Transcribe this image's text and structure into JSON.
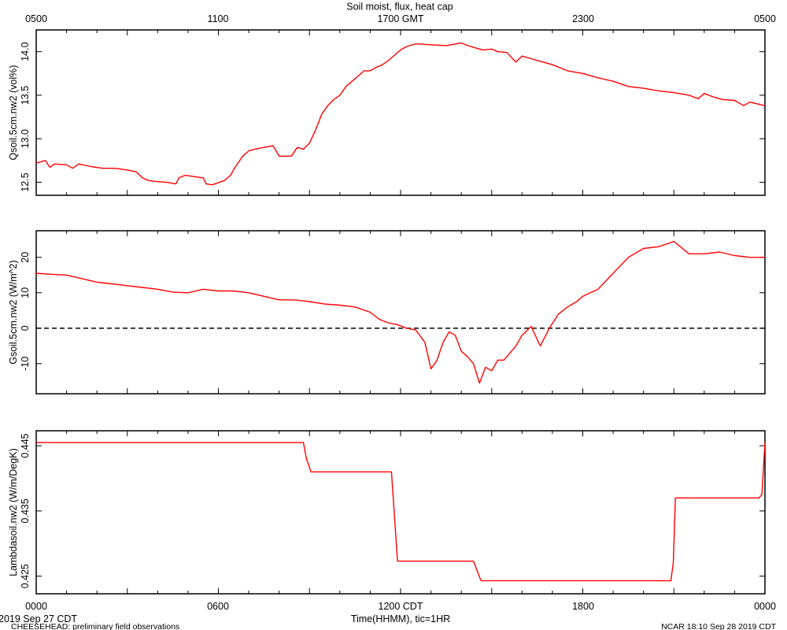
{
  "title": "Soil moist, flux, heat cap",
  "top_axis_ticks": [
    "0500",
    "1100",
    "1700 GMT",
    "2300",
    "0500"
  ],
  "bottom_axis_ticks": [
    "0000",
    "0600",
    "1200 CDT",
    "1800",
    "0000"
  ],
  "xlabel": "Time(HHMM), tic=1HR",
  "footer": {
    "date": "2019 Sep 27 CDT",
    "project": "CHEESEHEAD: preliminary field observations",
    "credit": "NCAR 18:10 Sep 28 2019 CDT"
  },
  "colors": {
    "series": "#ff0000",
    "frame": "#000000",
    "reference": "#000000"
  },
  "chart_data": [
    {
      "type": "line",
      "ylabel": "Qsoil.5cm.nw2 (vol%)",
      "xlim": [
        0,
        24
      ],
      "ylim": [
        12.35,
        14.25
      ],
      "yticks": [
        12.5,
        13.0,
        13.5,
        14.0
      ],
      "ytick_labels": [
        "12.5",
        "13.0",
        "13.5",
        "14.0"
      ],
      "series": [
        {
          "x": [
            0,
            0.3,
            0.45,
            0.6,
            1,
            1.2,
            1.4,
            1.8,
            2.2,
            2.6,
            3,
            3.3,
            3.5,
            3.7,
            3.9,
            4.3,
            4.6,
            4.7,
            4.9,
            5.1,
            5.5,
            5.6,
            5.8,
            6.2,
            6.4,
            6.55,
            6.8,
            7.0,
            7.2,
            7.5,
            7.8,
            8.0,
            8.4,
            8.6,
            8.8,
            9.0,
            9.2,
            9.4,
            9.6,
            9.8,
            10.0,
            10.2,
            10.4,
            10.6,
            10.8,
            11.0,
            11.2,
            11.4,
            11.6,
            11.8,
            12.0,
            12.2,
            12.5,
            13.0,
            13.5,
            14.0,
            14.3,
            14.5,
            14.7,
            15.0,
            15.2,
            15.5,
            15.8,
            16.0,
            16.3,
            16.6,
            17.0,
            17.5,
            18.0,
            18.5,
            19.0,
            19.5,
            20.0,
            20.5,
            21.0,
            21.5,
            21.8,
            22.0,
            22.3,
            22.6,
            23.0,
            23.3,
            23.5,
            24.0
          ],
          "y": [
            12.72,
            12.75,
            12.67,
            12.71,
            12.7,
            12.66,
            12.71,
            12.68,
            12.66,
            12.66,
            12.64,
            12.62,
            12.55,
            12.52,
            12.51,
            12.5,
            12.48,
            12.55,
            12.58,
            12.57,
            12.55,
            12.48,
            12.47,
            12.52,
            12.58,
            12.67,
            12.8,
            12.86,
            12.88,
            12.9,
            12.92,
            12.8,
            12.8,
            12.9,
            12.88,
            12.95,
            13.1,
            13.28,
            13.38,
            13.45,
            13.5,
            13.6,
            13.66,
            13.72,
            13.78,
            13.78,
            13.82,
            13.85,
            13.9,
            13.96,
            14.02,
            14.06,
            14.09,
            14.08,
            14.07,
            14.1,
            14.06,
            14.04,
            14.02,
            14.03,
            14.0,
            13.99,
            13.88,
            13.95,
            13.92,
            13.89,
            13.85,
            13.78,
            13.75,
            13.7,
            13.66,
            13.6,
            13.58,
            13.55,
            13.53,
            13.5,
            13.46,
            13.52,
            13.48,
            13.45,
            13.44,
            13.38,
            13.42,
            13.38
          ]
        }
      ]
    },
    {
      "type": "line",
      "ylabel": "Gsoil.5cm.nw2 (W/m^2)",
      "xlim": [
        0,
        24
      ],
      "ylim": [
        -18.5,
        27.5
      ],
      "yticks": [
        -10,
        0,
        10,
        20
      ],
      "ytick_labels": [
        "-10",
        "0",
        "10",
        "20"
      ],
      "reference_y": 0,
      "series": [
        {
          "x": [
            0,
            0.5,
            1,
            1.5,
            2,
            2.5,
            3,
            3.5,
            4,
            4.5,
            5,
            5.5,
            6,
            6.5,
            7,
            7.5,
            8,
            8.5,
            9,
            9.5,
            10,
            10.5,
            11,
            11.3,
            11.6,
            11.9,
            12.2,
            12.5,
            12.8,
            13.0,
            13.2,
            13.4,
            13.6,
            13.8,
            14.0,
            14.2,
            14.4,
            14.6,
            14.8,
            15.0,
            15.2,
            15.4,
            15.6,
            15.8,
            16.0,
            16.3,
            16.6,
            16.9,
            17.2,
            17.5,
            17.8,
            18.0,
            18.5,
            19.0,
            19.5,
            20.0,
            20.5,
            21.0,
            21.5,
            22.0,
            22.5,
            23.0,
            23.5,
            24.0
          ],
          "y": [
            15.5,
            15.2,
            15.0,
            14.0,
            13.0,
            12.5,
            12.0,
            11.5,
            11.0,
            10.2,
            10.0,
            11.0,
            10.5,
            10.5,
            10.0,
            9.0,
            8.0,
            8.0,
            7.5,
            6.8,
            6.5,
            6.0,
            4.5,
            2.5,
            1.5,
            1.0,
            0.0,
            -0.5,
            -4.0,
            -11.5,
            -9.0,
            -4.0,
            -1.0,
            -2.0,
            -6.5,
            -8.0,
            -10.0,
            -15.5,
            -11.0,
            -12.0,
            -9.0,
            -9.0,
            -7.0,
            -5.0,
            -2.0,
            0.5,
            -5.0,
            0.0,
            4.0,
            6.0,
            7.5,
            9.0,
            11.0,
            15.5,
            20.0,
            22.5,
            23.0,
            24.5,
            21.0,
            21.0,
            21.5,
            20.5,
            20.0,
            20.0
          ]
        }
      ]
    },
    {
      "type": "line",
      "ylabel": "Lambdasoil.nw2 (W/m/DegK)",
      "xlim": [
        0,
        24
      ],
      "ylim": [
        0.4223,
        0.4473
      ],
      "yticks": [
        0.425,
        0.435,
        0.445
      ],
      "ytick_labels": [
        "0.425",
        "0.435",
        "0.445"
      ],
      "series": [
        {
          "x": [
            0,
            8.8,
            8.9,
            9.05,
            11.7,
            11.9,
            14.4,
            14.65,
            20.9,
            20.98,
            21.05,
            23.8,
            23.9,
            24.0
          ],
          "y": [
            0.4455,
            0.4455,
            0.443,
            0.441,
            0.441,
            0.4273,
            0.4273,
            0.4243,
            0.4243,
            0.427,
            0.437,
            0.437,
            0.4375,
            0.4455
          ]
        }
      ]
    }
  ]
}
